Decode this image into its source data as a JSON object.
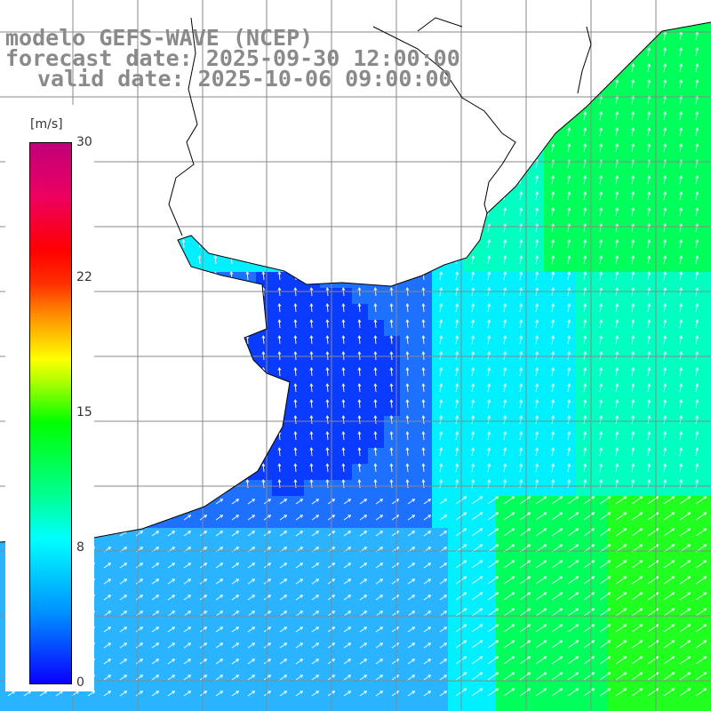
{
  "title": {
    "model": "modelo GEFS-WAVE (NCEP)",
    "forecast": "forecast date: 2025-09-30 12:00:00",
    "valid": "valid date: 2025-10-06 09:00:00"
  },
  "colorbar": {
    "unit": "[m/s]",
    "ticks": [
      "30",
      "22",
      "15",
      "8",
      "0"
    ],
    "colors": [
      "#0a00ff",
      "#0090ff",
      "#00ffff",
      "#00ff00",
      "#ffff00",
      "#ff9000",
      "#ff0000",
      "#c0007a"
    ]
  },
  "map": {
    "land_color": "#ffffff",
    "grid_color": "#888888",
    "coast_color": "#000000",
    "arrow_color": "#ffffff",
    "field_colors": {
      "deep_blue": "#0a3cff",
      "blue": "#1e70ff",
      "light_blue": "#2ab4ff",
      "cyan": "#00f0ff",
      "aqua": "#00ffc0",
      "green": "#00ff5a",
      "bright_green": "#20ff20"
    }
  }
}
